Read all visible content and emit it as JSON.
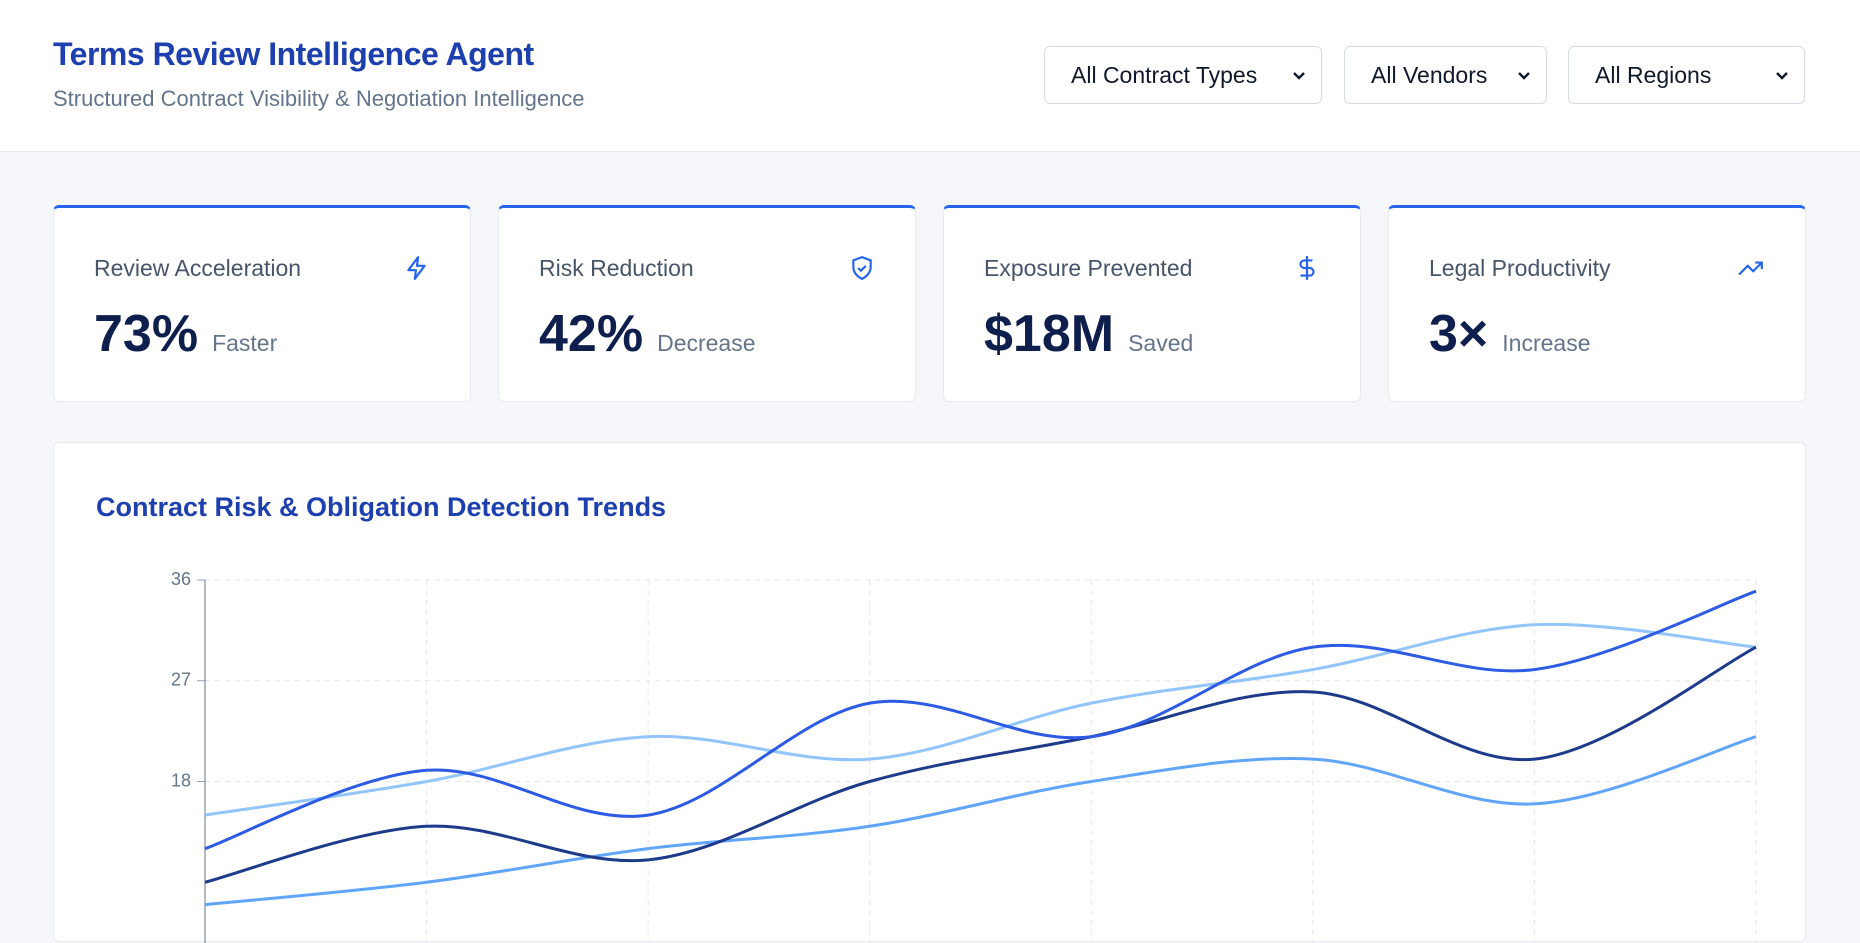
{
  "header": {
    "title": "Terms Review Intelligence Agent",
    "subtitle": "Structured Contract Visibility & Negotiation Intelligence"
  },
  "filters": [
    "All Contract Types",
    "All Vendors",
    "All Regions"
  ],
  "kpis": [
    {
      "label": "Review Acceleration",
      "value": "73%",
      "unit": "Faster"
    },
    {
      "label": "Risk Reduction",
      "value": "42%",
      "unit": "Decrease"
    },
    {
      "label": "Exposure Prevented",
      "value": "$18M",
      "unit": "Saved"
    },
    {
      "label": "Legal Productivity",
      "value": "3×",
      "unit": "Increase"
    }
  ],
  "chart_data": {
    "type": "line",
    "title": "Contract Risk & Obligation Detection Trends",
    "categories": [
      null,
      null,
      null,
      null,
      null,
      null,
      null,
      null
    ],
    "series": [
      {
        "color": "#93c5fd",
        "values": [
          15,
          18,
          22,
          20,
          25,
          28,
          32,
          30
        ]
      },
      {
        "color": "#60a5fa",
        "values": [
          7,
          9,
          12,
          14,
          18,
          20,
          16,
          22
        ]
      },
      {
        "color": "#1e3a8a",
        "values": [
          9,
          14,
          11,
          18,
          22,
          26,
          20,
          30
        ]
      },
      {
        "color": "#2d5be3",
        "values": [
          12,
          19,
          15,
          25,
          22,
          30,
          28,
          35
        ]
      }
    ],
    "ylim": [
      0,
      36
    ],
    "yticks": [
      18,
      27,
      36
    ],
    "grid": true
  }
}
